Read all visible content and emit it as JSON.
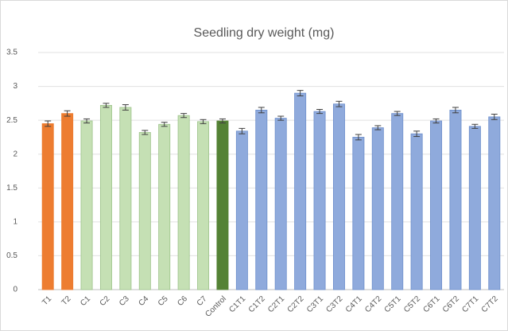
{
  "chart_data": {
    "type": "bar",
    "title": "Seedling dry weight (mg)",
    "categories": [
      "T1",
      "T2",
      "C1",
      "C2",
      "C3",
      "C4",
      "C5",
      "C6",
      "C7",
      "Control",
      "C1T1",
      "C1T2",
      "C2T1",
      "C2T2",
      "C3T1",
      "C3T2",
      "C4T1",
      "C4T2",
      "C5T1",
      "C5T2",
      "C6T1",
      "C6T2",
      "C7T1",
      "C7T2"
    ],
    "values": [
      2.45,
      2.6,
      2.49,
      2.72,
      2.69,
      2.32,
      2.44,
      2.57,
      2.48,
      2.49,
      2.34,
      2.65,
      2.53,
      2.9,
      2.63,
      2.74,
      2.25,
      2.39,
      2.6,
      2.3,
      2.49,
      2.65,
      2.41,
      2.55
    ],
    "errors": [
      0.04,
      0.04,
      0.03,
      0.03,
      0.04,
      0.03,
      0.03,
      0.03,
      0.03,
      0.03,
      0.04,
      0.04,
      0.03,
      0.04,
      0.03,
      0.04,
      0.04,
      0.03,
      0.03,
      0.04,
      0.03,
      0.04,
      0.03,
      0.04
    ],
    "colors": [
      "#ED7D31",
      "#ED7D31",
      "#C5E0B4",
      "#C5E0B4",
      "#C5E0B4",
      "#C5E0B4",
      "#C5E0B4",
      "#C5E0B4",
      "#C5E0B4",
      "#548235",
      "#8FAADC",
      "#8FAADC",
      "#8FAADC",
      "#8FAADC",
      "#8FAADC",
      "#8FAADC",
      "#8FAADC",
      "#8FAADC",
      "#8FAADC",
      "#8FAADC",
      "#8FAADC",
      "#8FAADC",
      "#8FAADC",
      "#8FAADC"
    ],
    "ylim": [
      0,
      3.5
    ],
    "yticks": [
      0,
      0.5,
      1,
      1.5,
      2,
      2.5,
      3,
      3.5
    ],
    "grid": true
  }
}
